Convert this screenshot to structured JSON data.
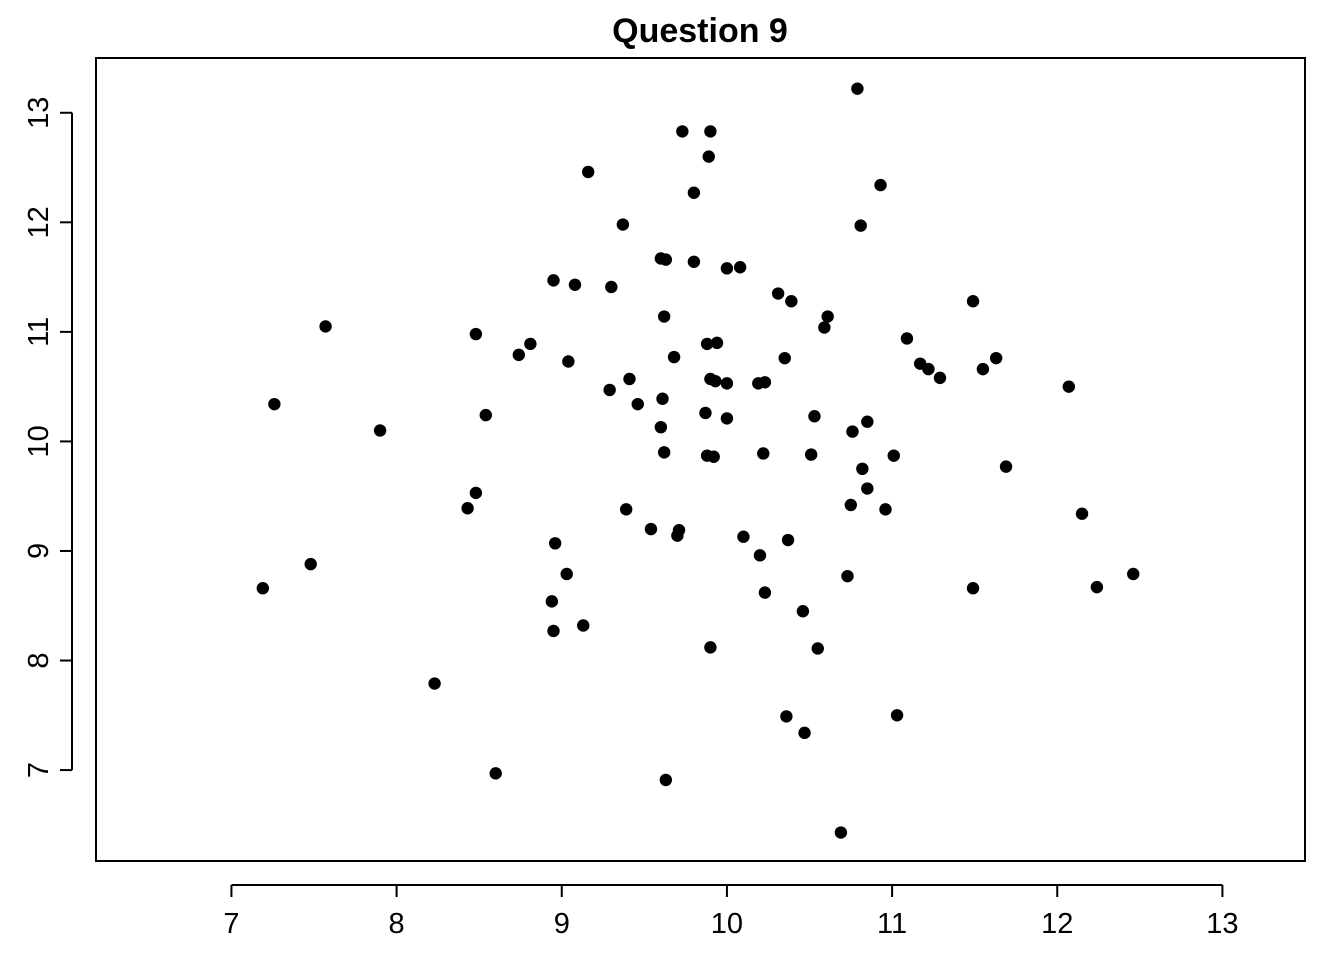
{
  "chart_data": {
    "type": "scatter",
    "title": "Question 9",
    "xlabel": "",
    "ylabel": "",
    "xlim": [
      6.18,
      13.5
    ],
    "ylim": [
      6.17,
      13.5
    ],
    "x_ticks": [
      7,
      8,
      9,
      10,
      11,
      12,
      13
    ],
    "y_ticks": [
      7,
      8,
      9,
      10,
      11,
      12,
      13
    ],
    "x_tick_labels": [
      "7",
      "8",
      "9",
      "10",
      "11",
      "12",
      "13"
    ],
    "y_tick_labels": [
      "7",
      "8",
      "9",
      "10",
      "11",
      "12",
      "13"
    ],
    "grid": false,
    "legend": "none",
    "marker_color": "#000000",
    "points": [
      [
        10.79,
        13.22
      ],
      [
        9.73,
        12.83
      ],
      [
        9.9,
        12.83
      ],
      [
        9.89,
        12.6
      ],
      [
        9.16,
        12.46
      ],
      [
        10.93,
        12.34
      ],
      [
        9.8,
        12.27
      ],
      [
        9.37,
        11.98
      ],
      [
        10.81,
        11.97
      ],
      [
        9.6,
        11.67
      ],
      [
        9.63,
        11.66
      ],
      [
        9.8,
        11.64
      ],
      [
        10.0,
        11.58
      ],
      [
        10.08,
        11.59
      ],
      [
        8.95,
        11.47
      ],
      [
        9.08,
        11.43
      ],
      [
        9.3,
        11.41
      ],
      [
        10.31,
        11.35
      ],
      [
        10.39,
        11.28
      ],
      [
        11.49,
        11.28
      ],
      [
        9.62,
        11.14
      ],
      [
        10.61,
        11.14
      ],
      [
        7.57,
        11.05
      ],
      [
        10.59,
        11.04
      ],
      [
        8.48,
        10.98
      ],
      [
        11.09,
        10.94
      ],
      [
        8.81,
        10.89
      ],
      [
        9.88,
        10.89
      ],
      [
        9.94,
        10.9
      ],
      [
        8.74,
        10.79
      ],
      [
        9.68,
        10.77
      ],
      [
        10.35,
        10.76
      ],
      [
        11.63,
        10.76
      ],
      [
        9.04,
        10.73
      ],
      [
        11.17,
        10.71
      ],
      [
        11.22,
        10.66
      ],
      [
        11.55,
        10.66
      ],
      [
        11.29,
        10.58
      ],
      [
        9.41,
        10.57
      ],
      [
        9.9,
        10.57
      ],
      [
        9.93,
        10.55
      ],
      [
        10.0,
        10.53
      ],
      [
        10.19,
        10.53
      ],
      [
        10.23,
        10.54
      ],
      [
        12.07,
        10.5
      ],
      [
        9.29,
        10.47
      ],
      [
        9.61,
        10.39
      ],
      [
        7.26,
        10.34
      ],
      [
        9.46,
        10.34
      ],
      [
        9.87,
        10.26
      ],
      [
        8.54,
        10.24
      ],
      [
        10.53,
        10.23
      ],
      [
        10.0,
        10.21
      ],
      [
        10.85,
        10.18
      ],
      [
        9.6,
        10.13
      ],
      [
        7.9,
        10.1
      ],
      [
        10.76,
        10.09
      ],
      [
        9.62,
        9.9
      ],
      [
        9.88,
        9.87
      ],
      [
        9.92,
        9.86
      ],
      [
        10.22,
        9.89
      ],
      [
        10.51,
        9.88
      ],
      [
        11.01,
        9.87
      ],
      [
        11.69,
        9.77
      ],
      [
        10.82,
        9.75
      ],
      [
        10.85,
        9.57
      ],
      [
        8.48,
        9.53
      ],
      [
        10.75,
        9.42
      ],
      [
        8.43,
        9.39
      ],
      [
        9.39,
        9.38
      ],
      [
        10.96,
        9.38
      ],
      [
        12.15,
        9.34
      ],
      [
        9.54,
        9.2
      ],
      [
        9.71,
        9.19
      ],
      [
        9.7,
        9.14
      ],
      [
        10.1,
        9.13
      ],
      [
        10.37,
        9.1
      ],
      [
        8.96,
        9.07
      ],
      [
        10.2,
        8.96
      ],
      [
        7.48,
        8.88
      ],
      [
        9.03,
        8.79
      ],
      [
        12.46,
        8.79
      ],
      [
        10.73,
        8.77
      ],
      [
        7.19,
        8.66
      ],
      [
        11.49,
        8.66
      ],
      [
        12.24,
        8.67
      ],
      [
        10.23,
        8.62
      ],
      [
        8.94,
        8.54
      ],
      [
        10.46,
        8.45
      ],
      [
        9.13,
        8.32
      ],
      [
        8.95,
        8.27
      ],
      [
        9.9,
        8.12
      ],
      [
        10.55,
        8.11
      ],
      [
        8.23,
        7.79
      ],
      [
        10.36,
        7.49
      ],
      [
        11.03,
        7.5
      ],
      [
        10.47,
        7.34
      ],
      [
        8.6,
        6.97
      ],
      [
        9.63,
        6.91
      ],
      [
        10.69,
        6.43
      ]
    ]
  }
}
